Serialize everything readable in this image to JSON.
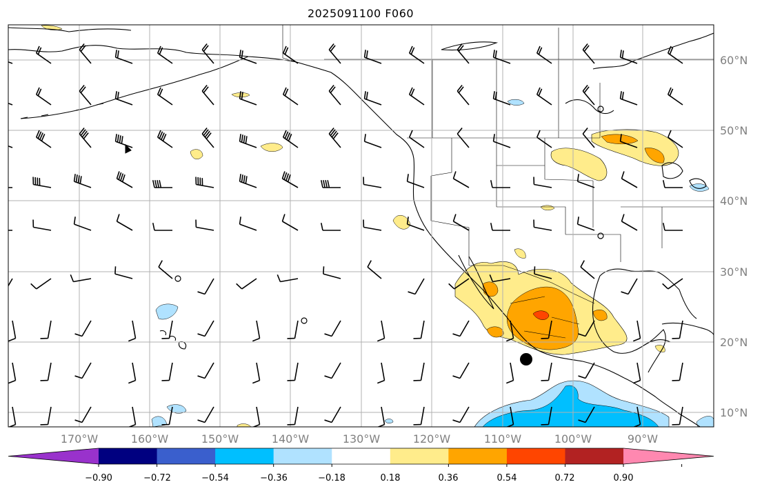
{
  "title": "2025091100 F060",
  "lat_labels": [
    "60°N",
    "50°N",
    "40°N",
    "30°N",
    "20°N",
    "10°N"
  ],
  "lon_labels": [
    "170°W",
    "160°W",
    "150°W",
    "140°W",
    "130°W",
    "120°W",
    "110°W",
    "100°W",
    "90°W"
  ],
  "colorbar": {
    "colors": [
      "#9932CC",
      "#000080",
      "#3A5FCD",
      "#00BFFF",
      "#B0E2FF",
      "#FFFFFF",
      "#FFEC8B",
      "#FFA500",
      "#FF4500",
      "#B22222",
      "#FF88B0"
    ],
    "tick_labels": [
      "−0.90",
      "−0.72",
      "−0.54",
      "−0.36",
      "−0.18",
      "0.18",
      "0.36",
      "0.54",
      "0.72",
      "0.90"
    ]
  },
  "colors": {
    "grid": "#b0b0b0",
    "coast": "#000000",
    "positive_light": "#FFEC8B",
    "positive_mid": "#FFA500",
    "positive_high": "#FF4500",
    "negative_light": "#B0E2FF",
    "negative_mid": "#00BFFF"
  }
}
